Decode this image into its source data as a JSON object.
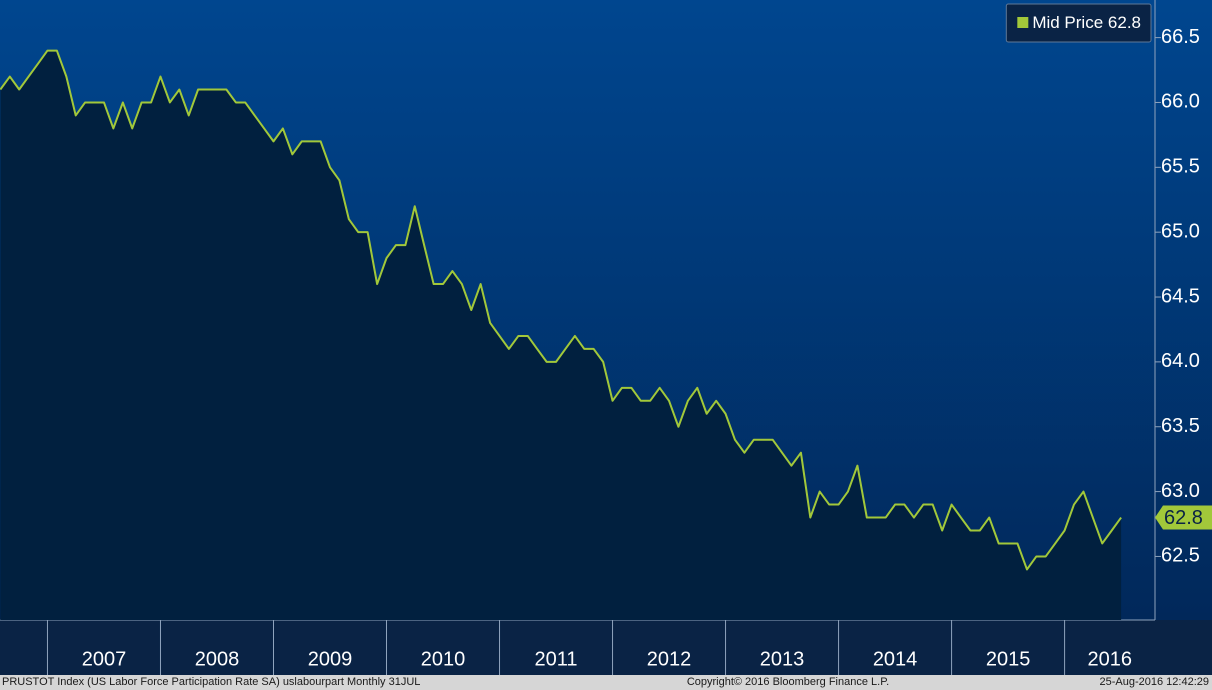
{
  "chart_data": {
    "type": "area-line",
    "x": [
      2006.583,
      2006.667,
      2006.75,
      2006.833,
      2006.917,
      2007,
      2007.083,
      2007.167,
      2007.25,
      2007.333,
      2007.417,
      2007.5,
      2007.583,
      2007.667,
      2007.75,
      2007.833,
      2007.917,
      2008,
      2008.083,
      2008.167,
      2008.25,
      2008.333,
      2008.417,
      2008.5,
      2008.583,
      2008.667,
      2008.75,
      2008.833,
      2008.917,
      2009,
      2009.083,
      2009.167,
      2009.25,
      2009.333,
      2009.417,
      2009.5,
      2009.583,
      2009.667,
      2009.75,
      2009.833,
      2009.917,
      2010,
      2010.083,
      2010.167,
      2010.25,
      2010.333,
      2010.417,
      2010.5,
      2010.583,
      2010.667,
      2010.75,
      2010.833,
      2010.917,
      2011,
      2011.083,
      2011.167,
      2011.25,
      2011.333,
      2011.417,
      2011.5,
      2011.583,
      2011.667,
      2011.75,
      2011.833,
      2011.917,
      2012,
      2012.083,
      2012.167,
      2012.25,
      2012.333,
      2012.417,
      2012.5,
      2012.583,
      2012.667,
      2012.75,
      2012.833,
      2012.917,
      2013,
      2013.083,
      2013.167,
      2013.25,
      2013.333,
      2013.417,
      2013.5,
      2013.583,
      2013.667,
      2013.75,
      2013.833,
      2013.917,
      2014,
      2014.083,
      2014.167,
      2014.25,
      2014.333,
      2014.417,
      2014.5,
      2014.583,
      2014.667,
      2014.75,
      2014.833,
      2014.917,
      2015,
      2015.083,
      2015.167,
      2015.25,
      2015.333,
      2015.417,
      2015.5,
      2015.583,
      2015.667,
      2015.75,
      2015.833,
      2015.917,
      2016,
      2016.083,
      2016.167,
      2016.25,
      2016.333,
      2016.417,
      2016.5
    ],
    "series": [
      {
        "name": "Mid Price",
        "color": "#a2c83a",
        "values": [
          66.1,
          66.2,
          66.1,
          66.2,
          66.3,
          66.4,
          66.4,
          66.2,
          65.9,
          66.0,
          66.0,
          66.0,
          65.8,
          66.0,
          65.8,
          66.0,
          66.0,
          66.2,
          66.0,
          66.1,
          65.9,
          66.1,
          66.1,
          66.1,
          66.1,
          66.0,
          66.0,
          65.9,
          65.8,
          65.7,
          65.8,
          65.6,
          65.7,
          65.7,
          65.7,
          65.5,
          65.4,
          65.1,
          65.0,
          65.0,
          64.6,
          64.8,
          64.9,
          64.9,
          65.2,
          64.9,
          64.6,
          64.6,
          64.7,
          64.6,
          64.4,
          64.6,
          64.3,
          64.2,
          64.1,
          64.2,
          64.2,
          64.1,
          64.0,
          64.0,
          64.1,
          64.2,
          64.1,
          64.1,
          64.0,
          63.7,
          63.8,
          63.8,
          63.7,
          63.7,
          63.8,
          63.7,
          63.5,
          63.7,
          63.8,
          63.6,
          63.7,
          63.6,
          63.4,
          63.3,
          63.4,
          63.4,
          63.4,
          63.3,
          63.2,
          63.3,
          62.8,
          63.0,
          62.9,
          62.9,
          63.0,
          63.2,
          62.8,
          62.8,
          62.8,
          62.9,
          62.9,
          62.8,
          62.9,
          62.9,
          62.7,
          62.9,
          62.8,
          62.7,
          62.7,
          62.8,
          62.6,
          62.6,
          62.6,
          62.4,
          62.5,
          62.5,
          62.6,
          62.7,
          62.9,
          63.0,
          62.8,
          62.6,
          62.7,
          62.8
        ]
      }
    ],
    "xlim": [
      2006.58,
      2016.8
    ],
    "xticks": [
      2007,
      2008,
      2009,
      2010,
      2011,
      2012,
      2013,
      2014,
      2015,
      2016
    ],
    "ylim": [
      62.01,
      66.79
    ],
    "yticks": [
      62.5,
      {
        "value": 63,
        "label": "63.0"
      },
      63.5,
      {
        "value": 64,
        "label": "64.0"
      },
      64.5,
      {
        "value": 65,
        "label": "65.0"
      },
      65.5,
      {
        "value": 66,
        "label": "66.0"
      },
      66.5
    ],
    "legend": "top-right",
    "footer": {
      "left": "PRUSTOT Index (US Labor Force Participation Rate SA) uslabourpart  Monthly 31JUL",
      "center": "Copyright© 2016 Bloomberg Finance L.P.",
      "right": "25-Aug-2016 12:42:29"
    }
  }
}
